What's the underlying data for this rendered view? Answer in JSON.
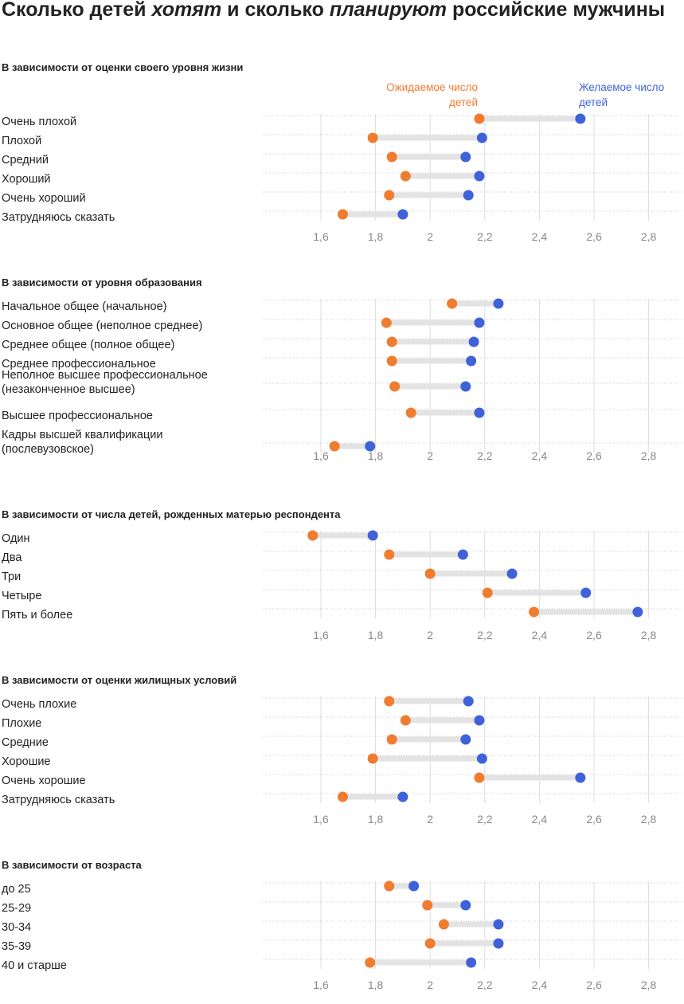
{
  "header": {
    "title_part1": "Сколько детей ",
    "title_em1": "хотят",
    "title_part2": " и сколько ",
    "title_em2": "планируют",
    "title_part3": " российские мужчины"
  },
  "legend": {
    "expected_label": [
      "Ожидаемое число",
      "детей"
    ],
    "desired_label": [
      "Желаемое число",
      "детей"
    ]
  },
  "colors": {
    "expected": "#f07c30",
    "desired": "#3f62d8",
    "connector": "#e3e3e3",
    "gridline": "#dddddd",
    "tick_text": "#888888"
  },
  "chart_data": [
    {
      "type": "dumbbell",
      "title": "В зависимости от оценки своего уровня жизни",
      "xlim": [
        1.6,
        2.8
      ],
      "xticks": [
        "1,6",
        "1,8",
        "2",
        "2,2",
        "2,4",
        "2,6",
        "2,8"
      ],
      "series_names": [
        "Ожидаемое число детей",
        "Желаемое число детей"
      ],
      "categories": [
        {
          "label": [
            "Очень плохой"
          ],
          "expected": 2.18,
          "desired": 2.55
        },
        {
          "label": [
            "Плохой"
          ],
          "expected": 1.79,
          "desired": 2.19
        },
        {
          "label": [
            "Средний"
          ],
          "expected": 1.86,
          "desired": 2.13
        },
        {
          "label": [
            "Хороший"
          ],
          "expected": 1.91,
          "desired": 2.18
        },
        {
          "label": [
            "Очень хороший"
          ],
          "expected": 1.85,
          "desired": 2.14
        },
        {
          "label": [
            "Затрудняюсь сказать"
          ],
          "expected": 1.68,
          "desired": 1.9
        }
      ]
    },
    {
      "type": "dumbbell",
      "title": "В зависимости от уровня образования",
      "xlim": [
        1.6,
        2.8
      ],
      "xticks": [
        "1,6",
        "1,8",
        "2",
        "2,2",
        "2,4",
        "2,6",
        "2,8"
      ],
      "categories": [
        {
          "label": [
            "Начальное общее (начальное)"
          ],
          "expected": 2.08,
          "desired": 2.25
        },
        {
          "label": [
            "Основное общее (неполное среднее)"
          ],
          "expected": 1.84,
          "desired": 2.18
        },
        {
          "label": [
            "Среднее общее (полное общее)"
          ],
          "expected": 1.86,
          "desired": 2.16
        },
        {
          "label": [
            "Среднее профессиональное"
          ],
          "expected": 1.86,
          "desired": 2.15
        },
        {
          "label": [
            "Неполное высшее профессиональное",
            "(незаконченное высшее)"
          ],
          "expected": 1.87,
          "desired": 2.13
        },
        {
          "label": [
            "Высшее профессиональное"
          ],
          "expected": 1.93,
          "desired": 2.18
        },
        {
          "label": [
            "Кадры высшей квалификации",
            "(послевузовское)"
          ],
          "expected": 1.65,
          "desired": 1.78
        }
      ]
    },
    {
      "type": "dumbbell",
      "title": "В зависимости от числа детей, рожденных матерью респондента",
      "xlim": [
        1.6,
        2.8
      ],
      "xticks": [
        "1,6",
        "1,8",
        "2",
        "2,2",
        "2,4",
        "2,6",
        "2,8"
      ],
      "categories": [
        {
          "label": [
            "Один"
          ],
          "expected": 1.57,
          "desired": 1.79
        },
        {
          "label": [
            "Два"
          ],
          "expected": 1.85,
          "desired": 2.12
        },
        {
          "label": [
            "Три"
          ],
          "expected": 2.0,
          "desired": 2.3
        },
        {
          "label": [
            "Четыре"
          ],
          "expected": 2.21,
          "desired": 2.57
        },
        {
          "label": [
            "Пять и более"
          ],
          "expected": 2.38,
          "desired": 2.76
        }
      ]
    },
    {
      "type": "dumbbell",
      "title": "В зависимости от оценки жилищных условий",
      "xlim": [
        1.6,
        2.8
      ],
      "xticks": [
        "1,6",
        "1,8",
        "2",
        "2,2",
        "2,4",
        "2,6",
        "2,8"
      ],
      "categories": [
        {
          "label": [
            "Очень плохие"
          ],
          "expected": 1.85,
          "desired": 2.14
        },
        {
          "label": [
            "Плохие"
          ],
          "expected": 1.91,
          "desired": 2.18
        },
        {
          "label": [
            "Средние"
          ],
          "expected": 1.86,
          "desired": 2.13
        },
        {
          "label": [
            "Хорошие"
          ],
          "expected": 1.79,
          "desired": 2.19
        },
        {
          "label": [
            "Очень хорошие"
          ],
          "expected": 2.18,
          "desired": 2.55
        },
        {
          "label": [
            "Затрудняюсь сказать"
          ],
          "expected": 1.68,
          "desired": 1.9
        }
      ]
    },
    {
      "type": "dumbbell",
      "title": "В зависимости от возраста",
      "xlim": [
        1.6,
        2.8
      ],
      "xticks": [
        "1,6",
        "1,8",
        "2",
        "2,2",
        "2,4",
        "2,6",
        "2,8"
      ],
      "categories": [
        {
          "label": [
            "до 25"
          ],
          "expected": 1.85,
          "desired": 1.94
        },
        {
          "label": [
            "25-29"
          ],
          "expected": 1.99,
          "desired": 2.13
        },
        {
          "label": [
            "30-34"
          ],
          "expected": 2.05,
          "desired": 2.25
        },
        {
          "label": [
            "35-39"
          ],
          "expected": 2.0,
          "desired": 2.25
        },
        {
          "label": [
            "40 и старше"
          ],
          "expected": 1.78,
          "desired": 2.15
        }
      ]
    }
  ]
}
